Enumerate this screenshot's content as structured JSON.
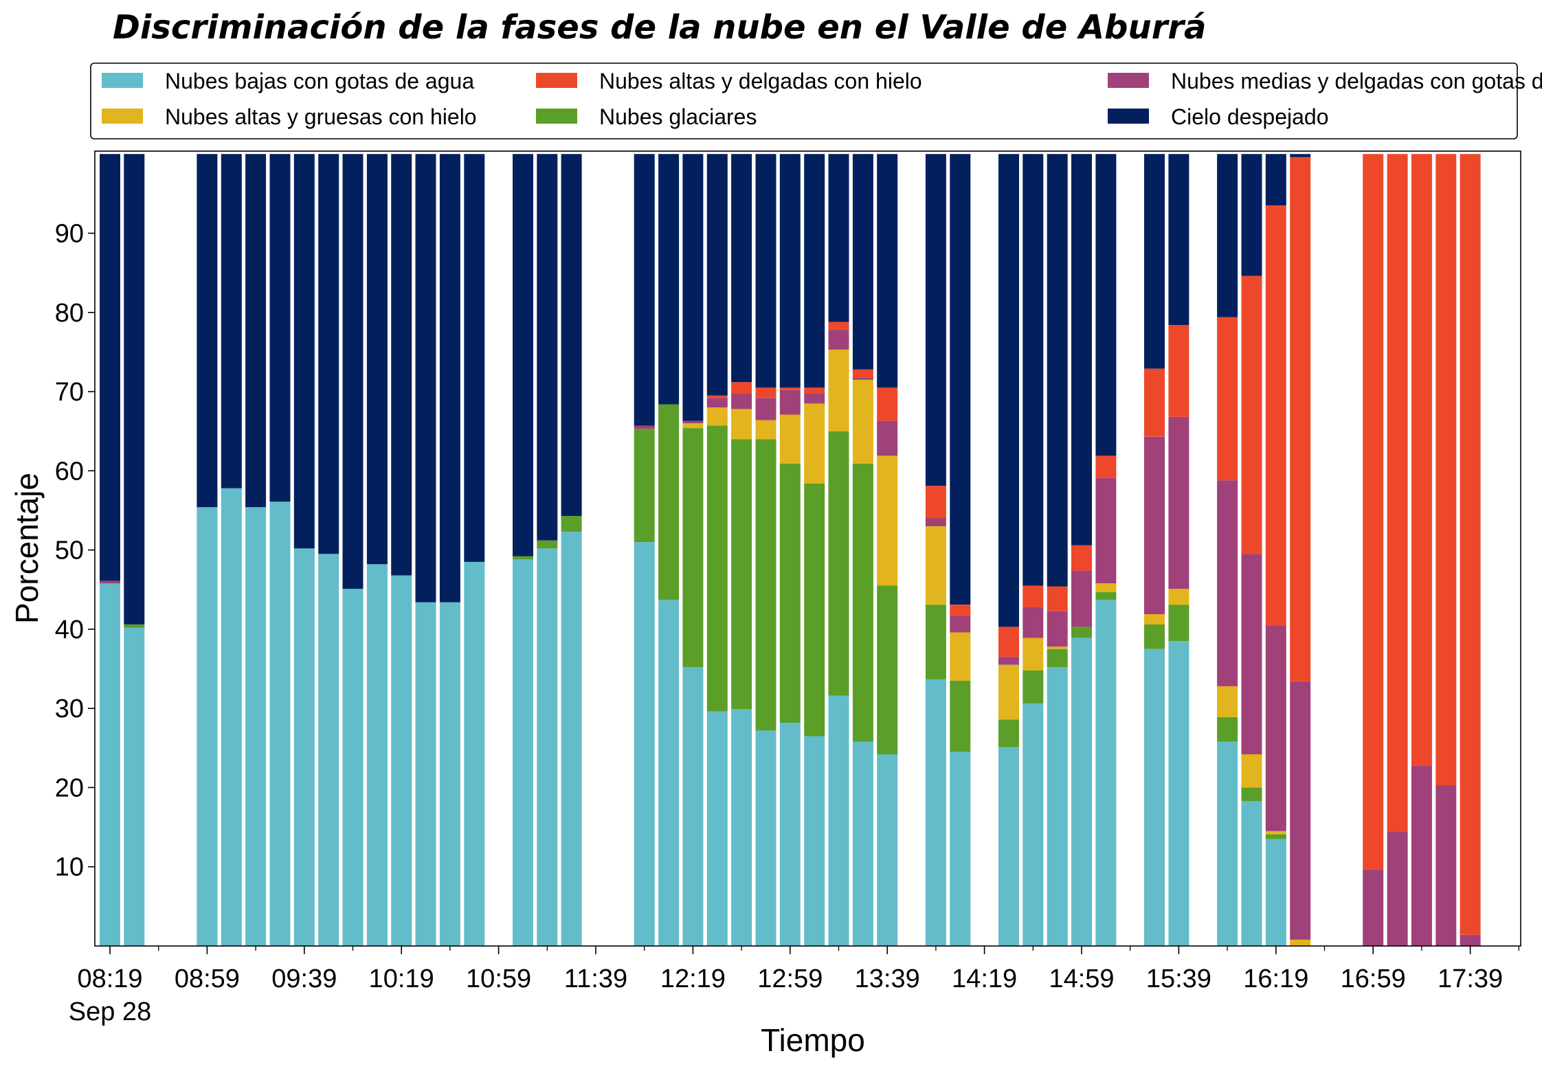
{
  "chart_data": {
    "type": "bar",
    "stacked": true,
    "title": "Discriminación de la fases de la nube en el Valle de Aburrá",
    "xlabel": "Tiempo",
    "ylabel": "Porcentaje",
    "ylim": [
      0,
      100
    ],
    "yticks": [
      10,
      20,
      30,
      40,
      50,
      60,
      70,
      80,
      90
    ],
    "x_tick_labels": [
      "08:19",
      "08:59",
      "09:39",
      "10:19",
      "10:59",
      "11:39",
      "12:19",
      "12:59",
      "13:39",
      "14:19",
      "14:59",
      "15:39",
      "16:19",
      "16:59",
      "17:39"
    ],
    "x_tick_sublabel": "Sep 28",
    "x_interval_minutes": 10,
    "x_start": "08:19",
    "grid": false,
    "legend_position": "top",
    "series": [
      {
        "name": "Nubes bajas con gotas de agua",
        "color": "#63bcc9"
      },
      {
        "name": "Nubes glaciares",
        "color": "#5b9e28"
      },
      {
        "name": "Nubes altas y gruesas con hielo",
        "color": "#e2b41d"
      },
      {
        "name": "Nubes medias y delgadas con gotas de agua",
        "color": "#a0417a"
      },
      {
        "name": "Nubes altas y delgadas con hielo",
        "color": "#ee482b"
      },
      {
        "name": "Cielo despejado",
        "color": "#03205e"
      }
    ],
    "legend_order": [
      0,
      2,
      4,
      1,
      3,
      5
    ],
    "bars": [
      {
        "x": "08:19",
        "values": [
          45.8,
          0,
          0,
          0.3,
          0,
          53.9
        ]
      },
      {
        "x": "08:29",
        "values": [
          40.2,
          0.4,
          0,
          0,
          0,
          59.4
        ]
      },
      {
        "x": "08:59",
        "values": [
          55.4,
          0,
          0,
          0,
          0,
          44.6
        ]
      },
      {
        "x": "09:09",
        "values": [
          57.8,
          0,
          0,
          0,
          0,
          42.2
        ]
      },
      {
        "x": "09:19",
        "values": [
          55.4,
          0,
          0,
          0,
          0,
          44.6
        ]
      },
      {
        "x": "09:29",
        "values": [
          56.1,
          0,
          0,
          0,
          0,
          43.9
        ]
      },
      {
        "x": "09:39",
        "values": [
          50.2,
          0,
          0,
          0,
          0,
          49.8
        ]
      },
      {
        "x": "09:49",
        "values": [
          49.5,
          0,
          0,
          0,
          0,
          50.5
        ]
      },
      {
        "x": "09:59",
        "values": [
          45.1,
          0,
          0,
          0,
          0,
          54.9
        ]
      },
      {
        "x": "10:09",
        "values": [
          48.2,
          0,
          0,
          0,
          0,
          51.8
        ]
      },
      {
        "x": "10:19",
        "values": [
          46.8,
          0,
          0,
          0,
          0,
          53.2
        ]
      },
      {
        "x": "10:29",
        "values": [
          43.4,
          0,
          0,
          0,
          0,
          56.6
        ]
      },
      {
        "x": "10:39",
        "values": [
          43.4,
          0,
          0,
          0,
          0,
          56.6
        ]
      },
      {
        "x": "10:49",
        "values": [
          48.5,
          0,
          0,
          0,
          0,
          51.5
        ]
      },
      {
        "x": "11:09",
        "values": [
          48.8,
          0.4,
          0,
          0,
          0,
          50.8
        ]
      },
      {
        "x": "11:19",
        "values": [
          50.2,
          1.0,
          0,
          0,
          0,
          48.8
        ]
      },
      {
        "x": "11:29",
        "values": [
          52.3,
          2.0,
          0,
          0,
          0,
          45.7
        ]
      },
      {
        "x": "11:59",
        "values": [
          51.0,
          14.3,
          0,
          0.4,
          0,
          34.3
        ]
      },
      {
        "x": "12:09",
        "values": [
          43.7,
          24.7,
          0,
          0,
          0,
          31.6
        ]
      },
      {
        "x": "12:19",
        "values": [
          35.2,
          30.2,
          0.6,
          0.3,
          0,
          33.7
        ]
      },
      {
        "x": "12:29",
        "values": [
          29.6,
          36.1,
          2.3,
          1.2,
          0.3,
          30.5
        ]
      },
      {
        "x": "12:39",
        "values": [
          29.9,
          34.1,
          3.8,
          1.9,
          1.5,
          28.8
        ]
      },
      {
        "x": "12:49",
        "values": [
          27.2,
          36.8,
          2.4,
          2.8,
          1.3,
          29.5
        ]
      },
      {
        "x": "12:59",
        "values": [
          28.2,
          32.7,
          6.2,
          3.1,
          0.3,
          29.5
        ]
      },
      {
        "x": "13:09",
        "values": [
          26.5,
          31.9,
          10.1,
          1.3,
          0.7,
          29.5
        ]
      },
      {
        "x": "13:19",
        "values": [
          31.6,
          33.4,
          10.3,
          2.5,
          1.0,
          21.2
        ]
      },
      {
        "x": "13:29",
        "values": [
          25.8,
          35.1,
          10.6,
          0.3,
          1.0,
          27.2
        ]
      },
      {
        "x": "13:39",
        "values": [
          24.2,
          21.3,
          16.4,
          4.4,
          4.2,
          29.5
        ]
      },
      {
        "x": "13:59",
        "values": [
          33.7,
          9.4,
          9.9,
          1.0,
          4.1,
          41.9
        ]
      },
      {
        "x": "14:09",
        "values": [
          24.5,
          9.0,
          6.1,
          2.1,
          1.4,
          56.9
        ]
      },
      {
        "x": "14:29",
        "values": [
          25.1,
          3.5,
          6.9,
          1.0,
          3.8,
          59.7
        ]
      },
      {
        "x": "14:39",
        "values": [
          30.6,
          4.2,
          4.1,
          3.9,
          2.7,
          54.5
        ]
      },
      {
        "x": "14:49",
        "values": [
          35.2,
          2.3,
          0.3,
          4.5,
          3.1,
          54.6
        ]
      },
      {
        "x": "14:59",
        "values": [
          38.9,
          1.4,
          0,
          7.1,
          3.2,
          49.4
        ]
      },
      {
        "x": "15:09",
        "values": [
          43.7,
          1.0,
          1.1,
          13.3,
          2.8,
          38.1
        ]
      },
      {
        "x": "15:29",
        "values": [
          37.5,
          3.1,
          1.3,
          22.4,
          8.6,
          27.1
        ]
      },
      {
        "x": "15:39",
        "values": [
          38.5,
          4.6,
          2.0,
          21.7,
          11.6,
          21.6
        ]
      },
      {
        "x": "15:59",
        "values": [
          25.8,
          3.1,
          3.9,
          26.0,
          20.6,
          20.6
        ]
      },
      {
        "x": "16:09",
        "values": [
          18.3,
          1.7,
          4.2,
          25.3,
          35.1,
          15.4
        ]
      },
      {
        "x": "16:19",
        "values": [
          13.5,
          0.6,
          0.4,
          26.0,
          53.0,
          6.5
        ]
      },
      {
        "x": "16:29",
        "values": [
          0,
          0,
          0.8,
          32.6,
          66.2,
          0.4
        ]
      },
      {
        "x": "16:59",
        "values": [
          0,
          0,
          0,
          9.7,
          90.3,
          0
        ]
      },
      {
        "x": "17:09",
        "values": [
          0,
          0,
          0,
          14.4,
          85.6,
          0
        ]
      },
      {
        "x": "17:19",
        "values": [
          0,
          0,
          0,
          22.8,
          77.2,
          0
        ]
      },
      {
        "x": "17:29",
        "values": [
          0,
          0,
          0,
          20.3,
          79.7,
          0
        ]
      },
      {
        "x": "17:39",
        "values": [
          0,
          0,
          0,
          1.4,
          98.6,
          0
        ]
      }
    ]
  }
}
